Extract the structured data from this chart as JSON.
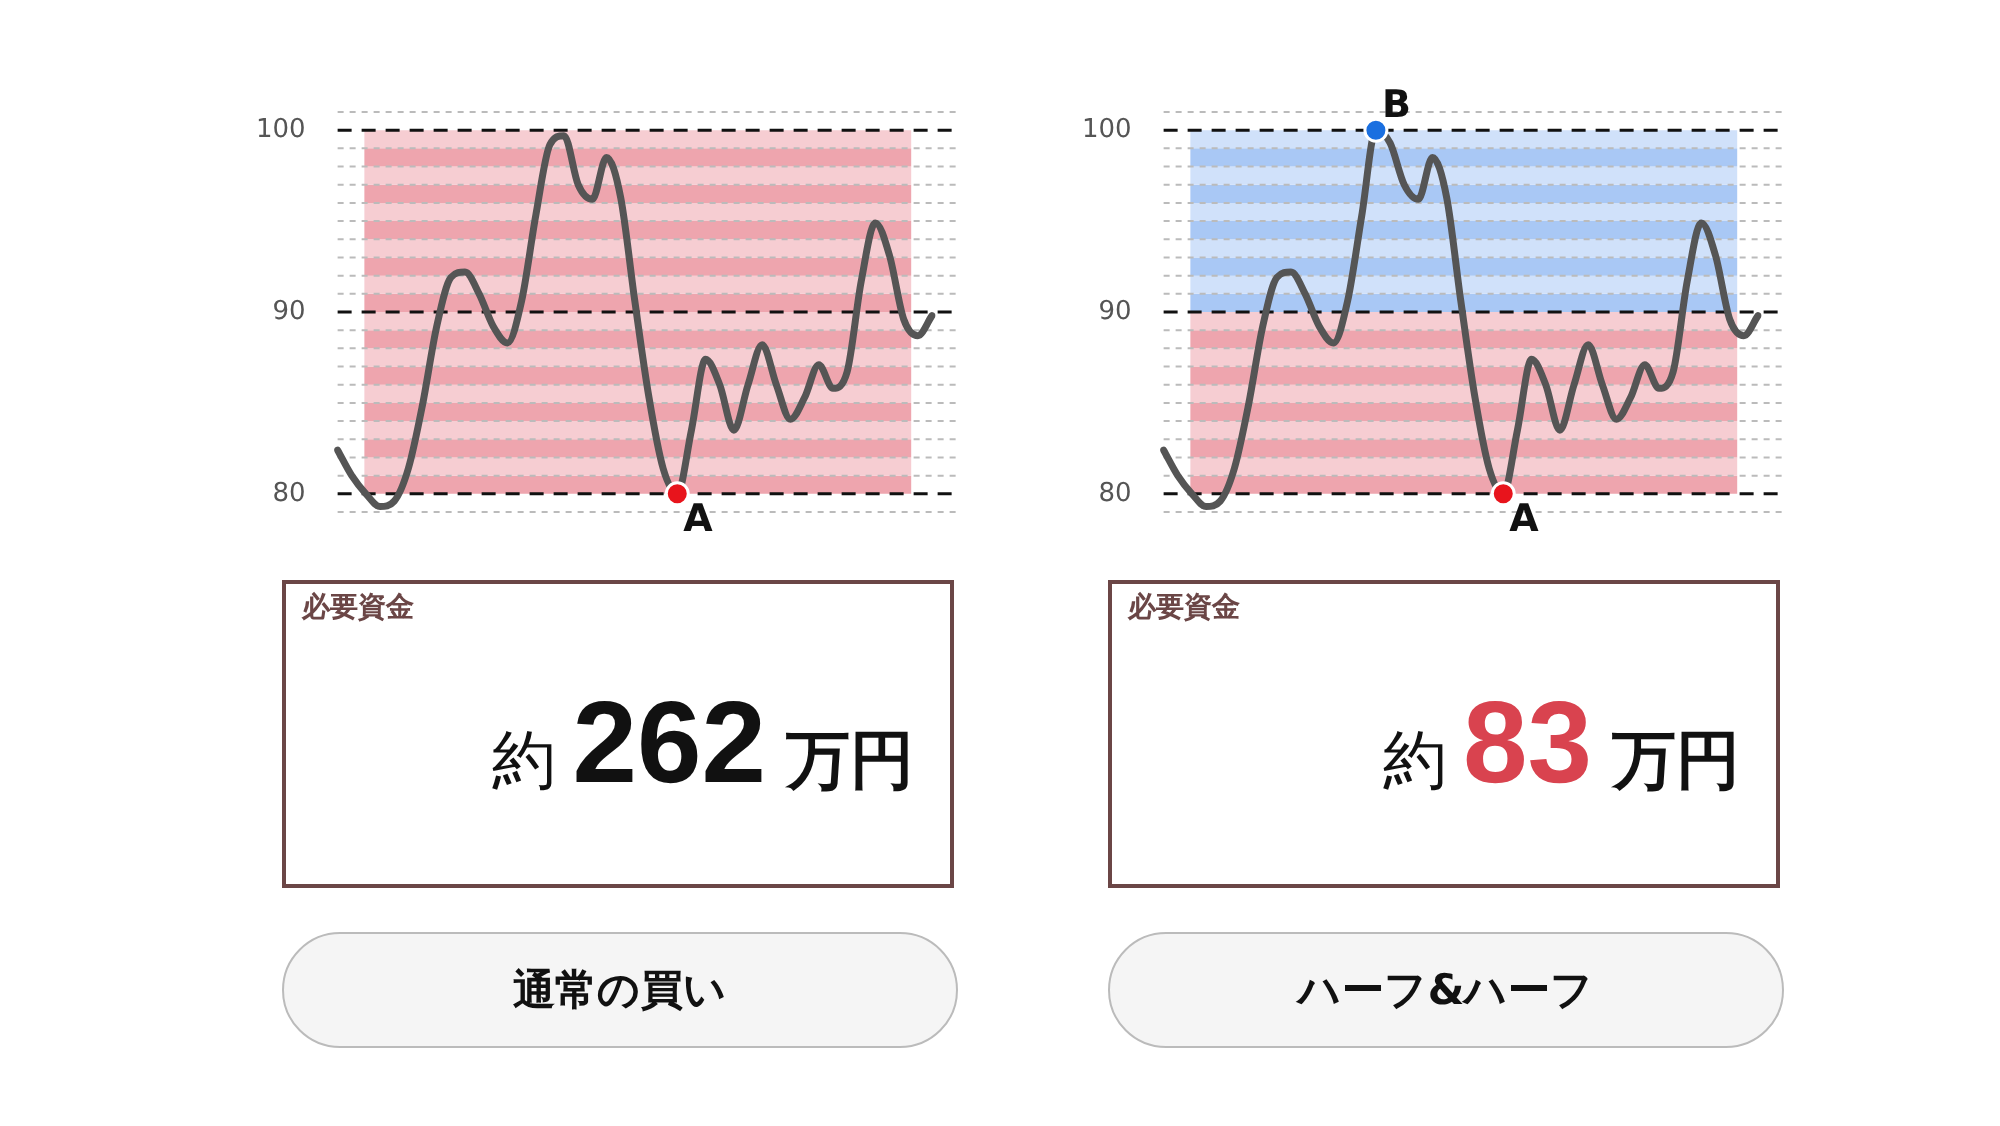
{
  "chart_data": [
    {
      "type": "line",
      "categories": [
        null,
        null,
        null,
        null,
        null,
        null,
        null,
        null,
        null,
        null,
        null,
        null,
        null,
        null,
        null,
        null,
        null,
        null,
        null,
        null,
        null,
        null,
        null,
        null,
        null,
        null,
        null,
        null,
        null,
        null,
        null,
        null,
        null,
        null,
        null,
        null,
        null,
        null,
        null,
        null,
        null,
        null,
        null
      ],
      "series": [
        {
          "color": "#555555",
          "values": [
            82.4,
            81.0,
            80.0,
            79.3,
            79.6,
            81.4,
            84.9,
            89.2,
            91.9,
            92.2,
            91.0,
            89.2,
            88.3,
            90.6,
            95.3,
            99.2,
            99.7,
            97.0,
            96.2,
            98.5,
            96.3,
            90.6,
            85.3,
            81.4,
            80.0,
            83.5,
            87.4,
            86.0,
            83.5,
            86.0,
            88.2,
            86.0,
            84.1,
            85.3,
            87.1,
            85.8,
            86.7,
            91.7,
            94.9,
            93.1,
            89.6,
            88.7,
            89.8
          ]
        },
        {
          "type": "scatter",
          "marker": "circle",
          "color": "#e8141c",
          "values": [
            null,
            null,
            null,
            null,
            null,
            null,
            null,
            null,
            null,
            null,
            null,
            null,
            null,
            null,
            null,
            null,
            null,
            null,
            null,
            null,
            null,
            null,
            null,
            null,
            80,
            null,
            null,
            null,
            null,
            null,
            null,
            null,
            null,
            null,
            null,
            null,
            null,
            null,
            null,
            null,
            null,
            null,
            null
          ]
        }
      ],
      "marker": "none",
      "ylim": [
        79,
        101
      ],
      "yticks": [
        {
          "value": 79,
          "label": null
        },
        80,
        {
          "value": 81,
          "label": null
        },
        {
          "value": 82,
          "label": null
        },
        {
          "value": 83,
          "label": null
        },
        {
          "value": 84,
          "label": null
        },
        {
          "value": 85,
          "label": null
        },
        {
          "value": 86,
          "label": null
        },
        {
          "value": 87,
          "label": null
        },
        {
          "value": 88,
          "label": null
        },
        {
          "value": 89,
          "label": null
        },
        90,
        {
          "value": 91,
          "label": null
        },
        {
          "value": 92,
          "label": null
        },
        {
          "value": 93,
          "label": null
        },
        {
          "value": 94,
          "label": null
        },
        {
          "value": 95,
          "label": null
        },
        {
          "value": 96,
          "label": null
        },
        {
          "value": 97,
          "label": null
        },
        {
          "value": 98,
          "label": null
        },
        {
          "value": 99,
          "label": null
        },
        100,
        {
          "value": 101,
          "label": null
        }
      ],
      "bands": [
        {
          "axis": "y",
          "from": 80,
          "to": 81,
          "color": "#eea5ae"
        },
        {
          "axis": "y",
          "from": 81,
          "to": 82,
          "color": "#f6cdd2"
        },
        {
          "axis": "y",
          "from": 82,
          "to": 83,
          "color": "#eea5ae"
        },
        {
          "axis": "y",
          "from": 83,
          "to": 84,
          "color": "#f6cdd2"
        },
        {
          "axis": "y",
          "from": 84,
          "to": 85,
          "color": "#eea5ae"
        },
        {
          "axis": "y",
          "from": 85,
          "to": 86,
          "color": "#f6cdd2"
        },
        {
          "axis": "y",
          "from": 86,
          "to": 87,
          "color": "#eea5ae"
        },
        {
          "axis": "y",
          "from": 87,
          "to": 88,
          "color": "#f6cdd2"
        },
        {
          "axis": "y",
          "from": 88,
          "to": 89,
          "color": "#eea5ae"
        },
        {
          "axis": "y",
          "from": 89,
          "to": 90,
          "color": "#f6cdd2"
        },
        {
          "axis": "y",
          "from": 90,
          "to": 91,
          "color": "#eea5ae"
        },
        {
          "axis": "y",
          "from": 91,
          "to": 92,
          "color": "#f6cdd2"
        },
        {
          "axis": "y",
          "from": 92,
          "to": 93,
          "color": "#eea5ae"
        },
        {
          "axis": "y",
          "from": 93,
          "to": 94,
          "color": "#f6cdd2"
        },
        {
          "axis": "y",
          "from": 94,
          "to": 95,
          "color": "#eea5ae"
        },
        {
          "axis": "y",
          "from": 95,
          "to": 96,
          "color": "#f6cdd2"
        },
        {
          "axis": "y",
          "from": 96,
          "to": 97,
          "color": "#eea5ae"
        },
        {
          "axis": "y",
          "from": 97,
          "to": 98,
          "color": "#f6cdd2"
        },
        {
          "axis": "y",
          "from": 98,
          "to": 99,
          "color": "#eea5ae"
        },
        {
          "axis": "y",
          "from": 99,
          "to": 100,
          "color": "#f6cdd2"
        }
      ],
      "annotations": [
        {
          "text": "A",
          "y": 80
        }
      ],
      "grid": "y",
      "legend": false,
      "tick_labels": "y"
    },
    {
      "type": "line",
      "categories": [
        null,
        null,
        null,
        null,
        null,
        null,
        null,
        null,
        null,
        null,
        null,
        null,
        null,
        null,
        null,
        null,
        null,
        null,
        null,
        null,
        null,
        null,
        null,
        null,
        null,
        null,
        null,
        null,
        null,
        null,
        null,
        null,
        null,
        null,
        null,
        null,
        null,
        null,
        null,
        null,
        null,
        null,
        null
      ],
      "series": [
        {
          "color": "#555555",
          "values": [
            82.4,
            81.0,
            80.0,
            79.3,
            79.6,
            81.4,
            84.9,
            89.2,
            91.9,
            92.2,
            91.0,
            89.2,
            88.3,
            90.6,
            95.3,
            100.0,
            99.3,
            97.0,
            96.2,
            98.5,
            96.3,
            90.6,
            85.3,
            81.4,
            80.0,
            83.5,
            87.4,
            86.0,
            83.5,
            86.0,
            88.2,
            86.0,
            84.1,
            85.3,
            87.1,
            85.8,
            86.7,
            91.7,
            94.9,
            93.1,
            89.6,
            88.7,
            89.8
          ]
        },
        {
          "type": "scatter",
          "marker": "circle",
          "color": "#e8141c",
          "values": [
            null,
            null,
            null,
            null,
            null,
            null,
            null,
            null,
            null,
            null,
            null,
            null,
            null,
            null,
            null,
            null,
            null,
            null,
            null,
            null,
            null,
            null,
            null,
            null,
            80,
            null,
            null,
            null,
            null,
            null,
            null,
            null,
            null,
            null,
            null,
            null,
            null,
            null,
            null,
            null,
            null,
            null,
            null
          ]
        },
        {
          "type": "scatter",
          "marker": "circle",
          "color": "#1a6fe0",
          "values": [
            null,
            null,
            null,
            null,
            null,
            null,
            null,
            null,
            null,
            null,
            null,
            null,
            null,
            null,
            null,
            100,
            null,
            null,
            null,
            null,
            null,
            null,
            null,
            null,
            null,
            null,
            null,
            null,
            null,
            null,
            null,
            null,
            null,
            null,
            null,
            null,
            null,
            null,
            null,
            null,
            null,
            null,
            null
          ]
        }
      ],
      "marker": "none",
      "ylim": [
        79,
        101
      ],
      "yticks": [
        {
          "value": 79,
          "label": null
        },
        80,
        {
          "value": 81,
          "label": null
        },
        {
          "value": 82,
          "label": null
        },
        {
          "value": 83,
          "label": null
        },
        {
          "value": 84,
          "label": null
        },
        {
          "value": 85,
          "label": null
        },
        {
          "value": 86,
          "label": null
        },
        {
          "value": 87,
          "label": null
        },
        {
          "value": 88,
          "label": null
        },
        {
          "value": 89,
          "label": null
        },
        90,
        {
          "value": 91,
          "label": null
        },
        {
          "value": 92,
          "label": null
        },
        {
          "value": 93,
          "label": null
        },
        {
          "value": 94,
          "label": null
        },
        {
          "value": 95,
          "label": null
        },
        {
          "value": 96,
          "label": null
        },
        {
          "value": 97,
          "label": null
        },
        {
          "value": 98,
          "label": null
        },
        {
          "value": 99,
          "label": null
        },
        100,
        {
          "value": 101,
          "label": null
        }
      ],
      "bands": [
        {
          "axis": "y",
          "from": 80,
          "to": 81,
          "color": "#eea5ae"
        },
        {
          "axis": "y",
          "from": 81,
          "to": 82,
          "color": "#f6cdd2"
        },
        {
          "axis": "y",
          "from": 82,
          "to": 83,
          "color": "#eea5ae"
        },
        {
          "axis": "y",
          "from": 83,
          "to": 84,
          "color": "#f6cdd2"
        },
        {
          "axis": "y",
          "from": 84,
          "to": 85,
          "color": "#eea5ae"
        },
        {
          "axis": "y",
          "from": 85,
          "to": 86,
          "color": "#f6cdd2"
        },
        {
          "axis": "y",
          "from": 86,
          "to": 87,
          "color": "#eea5ae"
        },
        {
          "axis": "y",
          "from": 87,
          "to": 88,
          "color": "#f6cdd2"
        },
        {
          "axis": "y",
          "from": 88,
          "to": 89,
          "color": "#eea5ae"
        },
        {
          "axis": "y",
          "from": 89,
          "to": 90,
          "color": "#f6cdd2"
        },
        {
          "axis": "y",
          "from": 90,
          "to": 91,
          "color": "#a9c8f5"
        },
        {
          "axis": "y",
          "from": 91,
          "to": 92,
          "color": "#d0e1fa"
        },
        {
          "axis": "y",
          "from": 92,
          "to": 93,
          "color": "#a9c8f5"
        },
        {
          "axis": "y",
          "from": 93,
          "to": 94,
          "color": "#d0e1fa"
        },
        {
          "axis": "y",
          "from": 94,
          "to": 95,
          "color": "#a9c8f5"
        },
        {
          "axis": "y",
          "from": 95,
          "to": 96,
          "color": "#d0e1fa"
        },
        {
          "axis": "y",
          "from": 96,
          "to": 97,
          "color": "#a9c8f5"
        },
        {
          "axis": "y",
          "from": 97,
          "to": 98,
          "color": "#d0e1fa"
        },
        {
          "axis": "y",
          "from": 98,
          "to": 99,
          "color": "#a9c8f5"
        },
        {
          "axis": "y",
          "from": 99,
          "to": 100,
          "color": "#d0e1fa"
        }
      ],
      "annotations": [
        {
          "text": "A",
          "y": 80
        },
        {
          "text": "B",
          "y": 100
        }
      ],
      "grid": "y",
      "legend": false,
      "tick_labels": "y"
    },
    {
      "type": "other",
      "color": "#111111",
      "annotations": [
        "必要資金",
        "約",
        "262",
        "万円",
        "通常の買い"
      ]
    },
    {
      "type": "other",
      "color": "#d9434f",
      "annotations": [
        "必要資金",
        "約",
        "83",
        "万円",
        "ハーフ&ハーフ"
      ]
    }
  ]
}
